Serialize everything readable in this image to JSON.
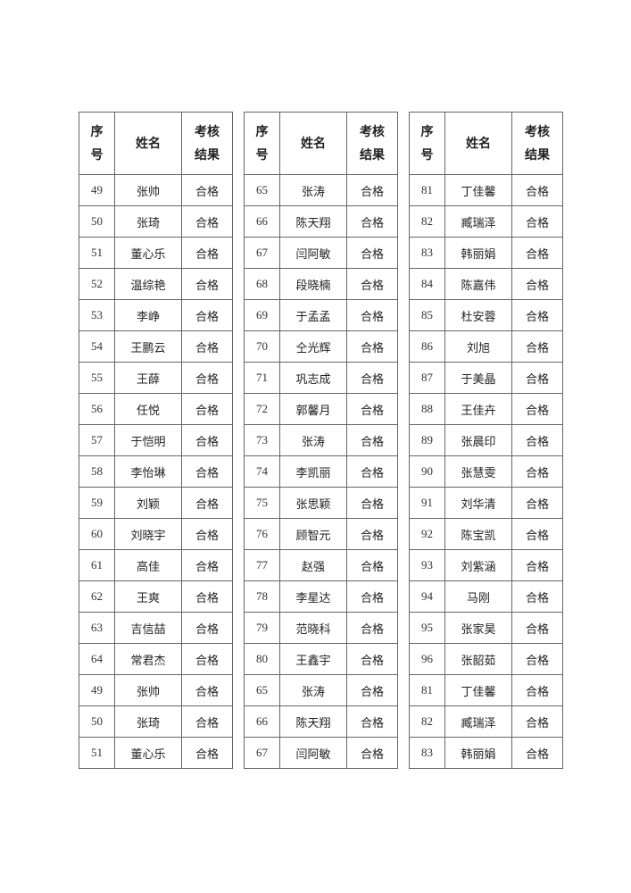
{
  "header": {
    "seq": "序号",
    "seq_line1": "序",
    "seq_line2": "号",
    "name": "姓名",
    "result_line1": "考核",
    "result_line2": "结果"
  },
  "groups": [
    {
      "rows": [
        [
          "49",
          "张帅",
          "合格"
        ],
        [
          "50",
          "张琦",
          "合格"
        ],
        [
          "51",
          "董心乐",
          "合格"
        ],
        [
          "52",
          "温综艳",
          "合格"
        ],
        [
          "53",
          "李峥",
          "合格"
        ],
        [
          "54",
          "王鹏云",
          "合格"
        ],
        [
          "55",
          "王薛",
          "合格"
        ],
        [
          "56",
          "任悦",
          "合格"
        ],
        [
          "57",
          "于恺明",
          "合格"
        ],
        [
          "58",
          "李怡琳",
          "合格"
        ],
        [
          "59",
          "刘颖",
          "合格"
        ],
        [
          "60",
          "刘晓宇",
          "合格"
        ],
        [
          "61",
          "高佳",
          "合格"
        ],
        [
          "62",
          "王爽",
          "合格"
        ],
        [
          "63",
          "吉信喆",
          "合格"
        ],
        [
          "64",
          "常君杰",
          "合格"
        ],
        [
          "49",
          "张帅",
          "合格"
        ],
        [
          "50",
          "张琦",
          "合格"
        ],
        [
          "51",
          "董心乐",
          "合格"
        ]
      ]
    },
    {
      "rows": [
        [
          "65",
          "张涛",
          "合格"
        ],
        [
          "66",
          "陈天翔",
          "合格"
        ],
        [
          "67",
          "闫阿敏",
          "合格"
        ],
        [
          "68",
          "段晓楠",
          "合格"
        ],
        [
          "69",
          "于孟孟",
          "合格"
        ],
        [
          "70",
          "仝光辉",
          "合格"
        ],
        [
          "71",
          "巩志成",
          "合格"
        ],
        [
          "72",
          "郭馨月",
          "合格"
        ],
        [
          "73",
          "张涛",
          "合格"
        ],
        [
          "74",
          "李凯丽",
          "合格"
        ],
        [
          "75",
          "张思颖",
          "合格"
        ],
        [
          "76",
          "顾智元",
          "合格"
        ],
        [
          "77",
          "赵强",
          "合格"
        ],
        [
          "78",
          "李星达",
          "合格"
        ],
        [
          "79",
          "范晓科",
          "合格"
        ],
        [
          "80",
          "王鑫宇",
          "合格"
        ],
        [
          "65",
          "张涛",
          "合格"
        ],
        [
          "66",
          "陈天翔",
          "合格"
        ],
        [
          "67",
          "闫阿敏",
          "合格"
        ]
      ]
    },
    {
      "rows": [
        [
          "81",
          "丁佳馨",
          "合格"
        ],
        [
          "82",
          "臧瑞泽",
          "合格"
        ],
        [
          "83",
          "韩丽娟",
          "合格"
        ],
        [
          "84",
          "陈嘉伟",
          "合格"
        ],
        [
          "85",
          "杜安蓉",
          "合格"
        ],
        [
          "86",
          "刘旭",
          "合格"
        ],
        [
          "87",
          "于美晶",
          "合格"
        ],
        [
          "88",
          "王佳卉",
          "合格"
        ],
        [
          "89",
          "张晨印",
          "合格"
        ],
        [
          "90",
          "张慧雯",
          "合格"
        ],
        [
          "91",
          "刘华清",
          "合格"
        ],
        [
          "92",
          "陈宝凯",
          "合格"
        ],
        [
          "93",
          "刘紫涵",
          "合格"
        ],
        [
          "94",
          "马刚",
          "合格"
        ],
        [
          "95",
          "张家昊",
          "合格"
        ],
        [
          "96",
          "张韶茹",
          "合格"
        ],
        [
          "81",
          "丁佳馨",
          "合格"
        ],
        [
          "82",
          "臧瑞泽",
          "合格"
        ],
        [
          "83",
          "韩丽娟",
          "合格"
        ]
      ]
    }
  ]
}
